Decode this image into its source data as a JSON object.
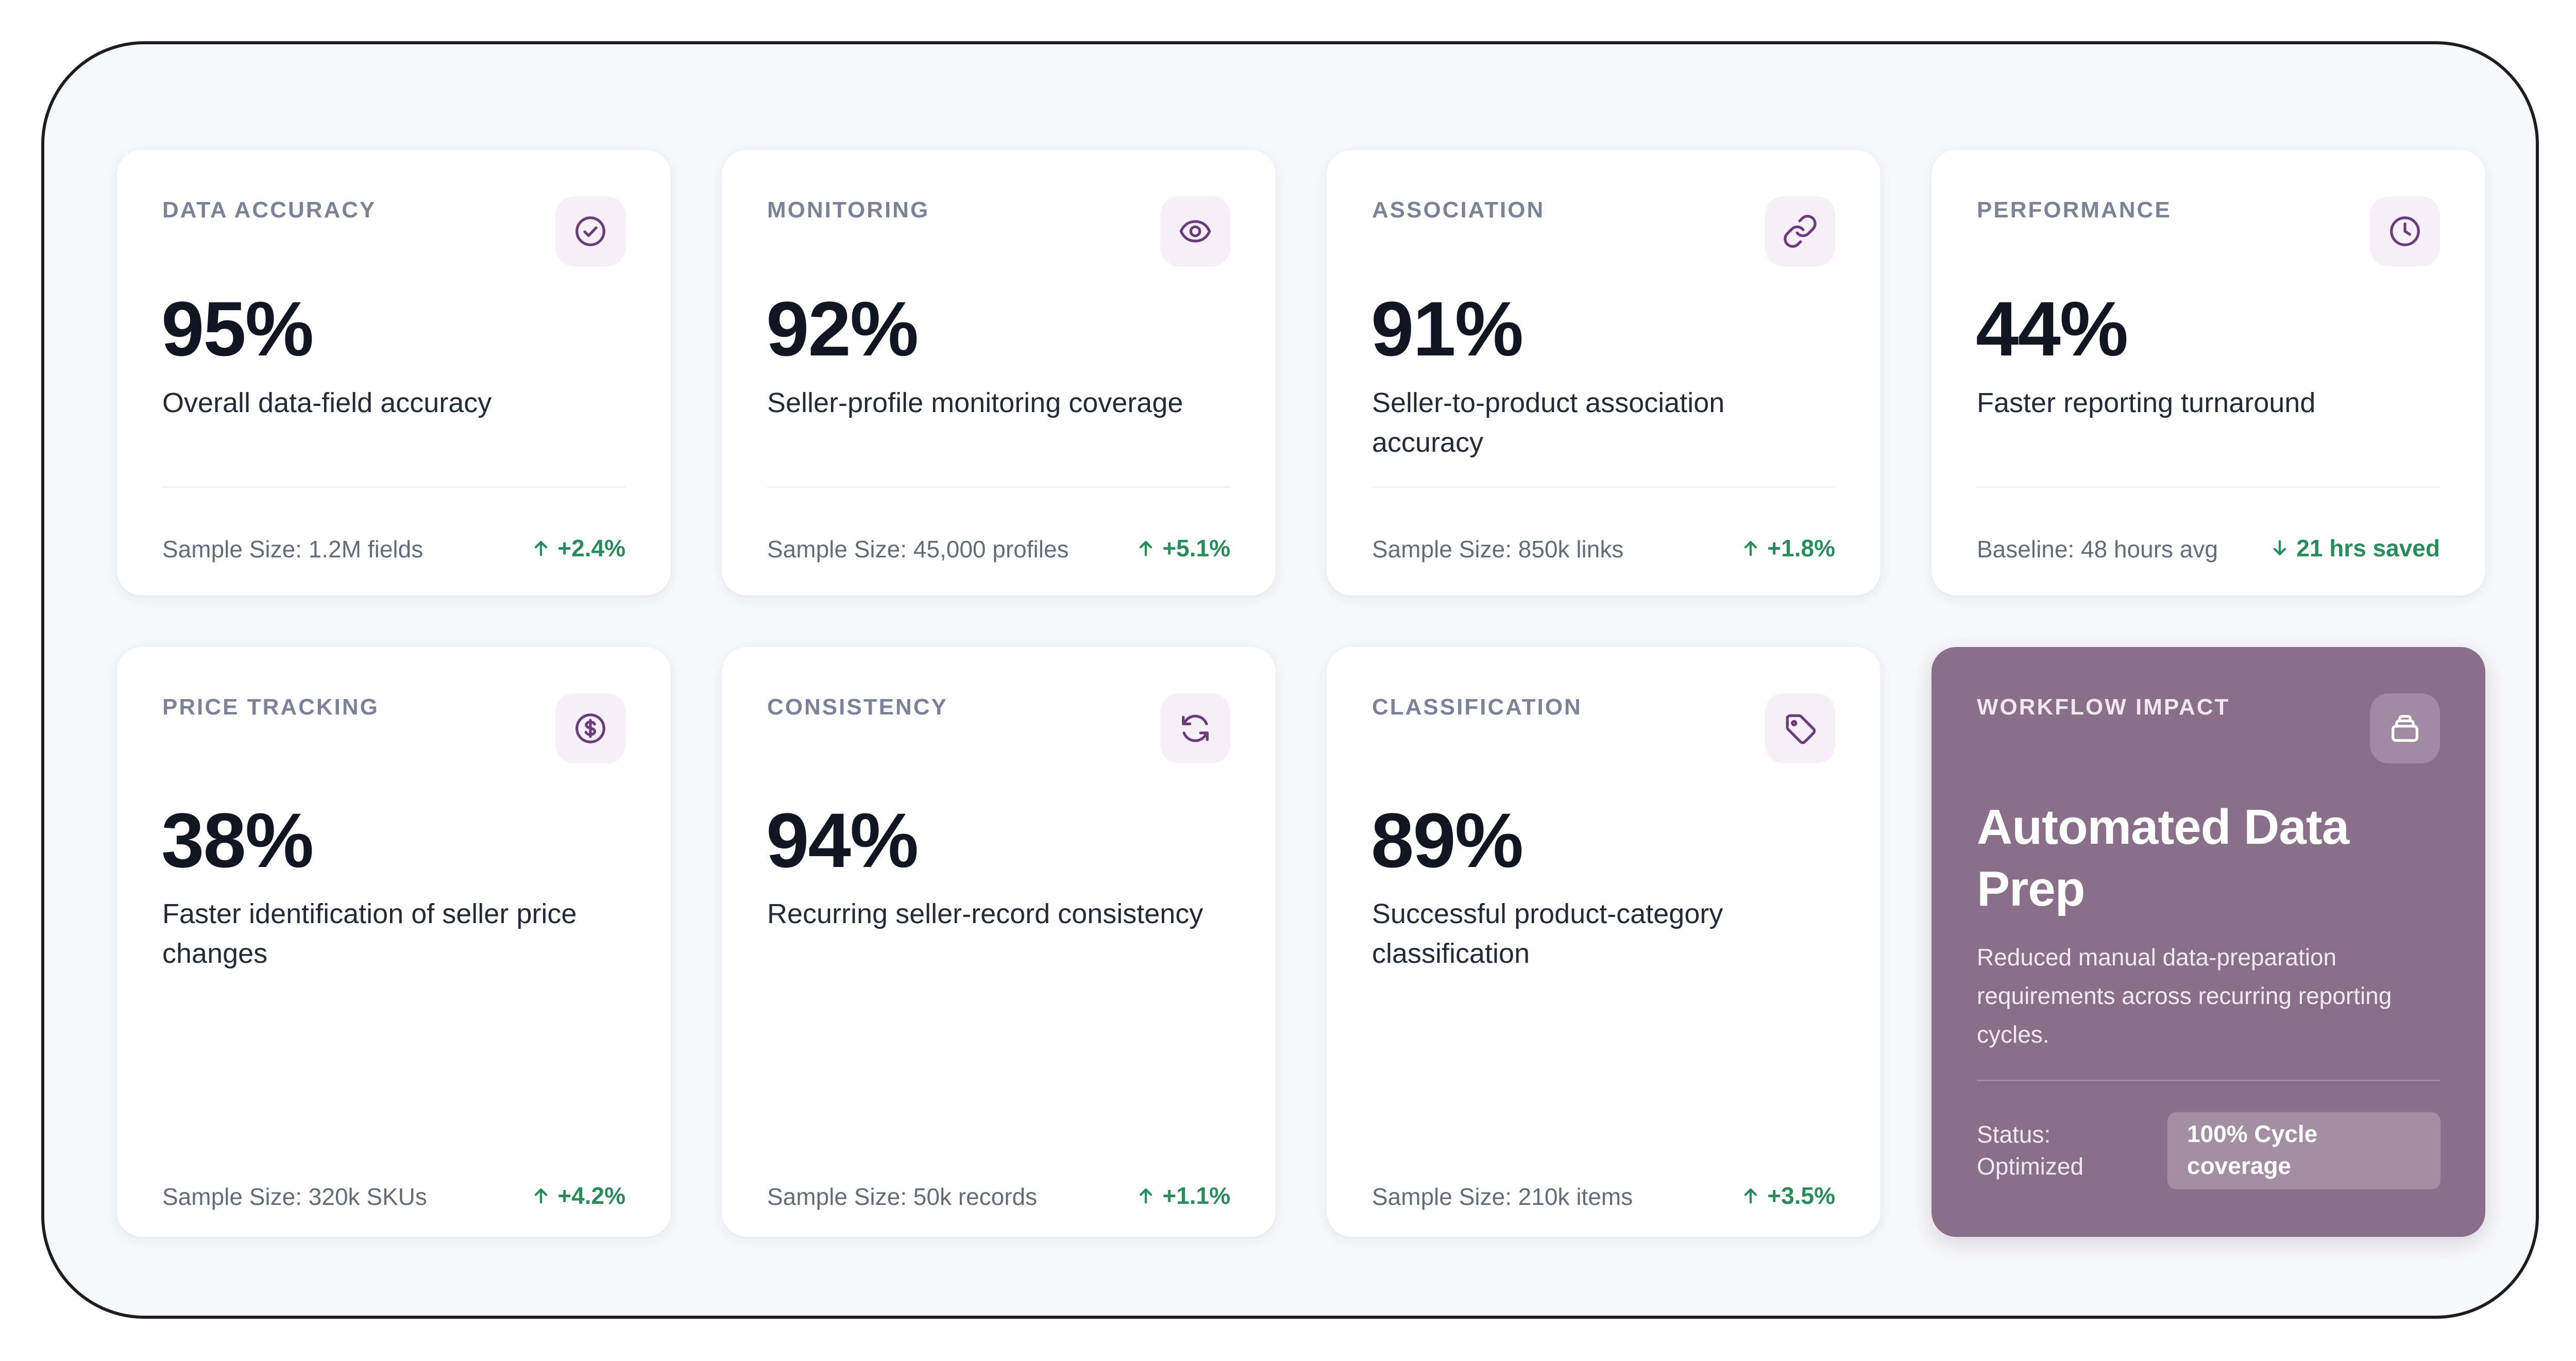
{
  "colors": {
    "background": "#f7f8fa",
    "card": "#ffffff",
    "accent_card": "#8a6f8b",
    "icon_box": "#f6eff7",
    "icon_stroke": "#6a3d7a",
    "trend_green": "#2a8c5d"
  },
  "cards": [
    {
      "category": "DATA ACCURACY",
      "icon": "check-circle-icon",
      "value": "95%",
      "description": "Overall data-field accuracy",
      "footer": "Sample Size: 1.2M fields",
      "trend": "+2.4%",
      "trend_direction": "up"
    },
    {
      "category": "MONITORING",
      "icon": "eye-icon",
      "value": "92%",
      "description": "Seller-profile monitoring coverage",
      "footer": "Sample Size: 45,000 profiles",
      "trend": "+5.1%",
      "trend_direction": "up"
    },
    {
      "category": "ASSOCIATION",
      "icon": "link-icon",
      "value": "91%",
      "description": "Seller-to-product association accuracy",
      "footer": "Sample Size: 850k links",
      "trend": "+1.8%",
      "trend_direction": "up"
    },
    {
      "category": "PERFORMANCE",
      "icon": "clock-icon",
      "value": "44%",
      "description": "Faster reporting turnaround",
      "footer": "Baseline: 48 hours avg",
      "trend": "21 hrs saved",
      "trend_direction": "down"
    },
    {
      "category": "PRICE TRACKING",
      "icon": "dollar-circle-icon",
      "value": "38%",
      "description": "Faster identification of seller price changes",
      "footer": "Sample Size: 320k SKUs",
      "trend": "+4.2%",
      "trend_direction": "up"
    },
    {
      "category": "CONSISTENCY",
      "icon": "refresh-icon",
      "value": "94%",
      "description": "Recurring seller-record consistency",
      "footer": "Sample Size: 50k records",
      "trend": "+1.1%",
      "trend_direction": "up"
    },
    {
      "category": "CLASSIFICATION",
      "icon": "tag-icon",
      "value": "89%",
      "description": "Successful product-category classification",
      "footer": "Sample Size: 210k items",
      "trend": "+3.5%",
      "trend_direction": "up"
    }
  ],
  "featured": {
    "category": "WORKFLOW IMPACT",
    "icon": "archive-icon",
    "title": "Automated Data Prep",
    "description": "Reduced manual data-preparation requirements across recurring reporting cycles.",
    "status_label": "Status: Optimized",
    "status_badge": "100% Cycle coverage"
  }
}
